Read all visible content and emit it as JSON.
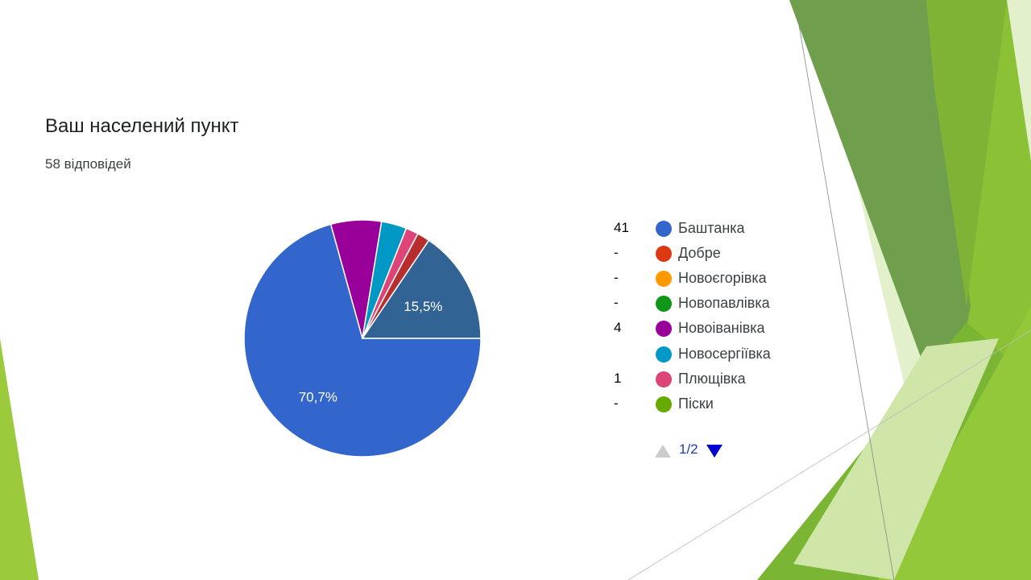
{
  "header": {
    "title": "Ваш населений пункт",
    "responses": "58 відповідей"
  },
  "chart_data": {
    "type": "pie",
    "total_responses": 58,
    "slices": [
      {
        "label": "Баштанка",
        "count": 41,
        "percent": 70.7,
        "color": "#3366cc",
        "data_label": "70,7%"
      },
      {
        "label": "Добре",
        "count": 0,
        "color": "#dc3912"
      },
      {
        "label": "Новоєгорівка",
        "count": 0,
        "color": "#ff9900"
      },
      {
        "label": "Новопавлівка",
        "count": 0,
        "color": "#109618"
      },
      {
        "label": "Новоіванівка",
        "count": 4,
        "color": "#990099"
      },
      {
        "label": "Новосергіївка",
        "count": 2,
        "color": "#0099c6"
      },
      {
        "label": "Плющівка",
        "count": 1,
        "color": "#dd4477"
      },
      {
        "label": "Піски",
        "count": 0,
        "color": "#66aa00"
      },
      {
        "label": "",
        "count": 1,
        "color": "#b82e2e"
      },
      {
        "label": "",
        "count": 9,
        "percent": 15.5,
        "color": "#316395",
        "data_label": "15,5%"
      }
    ],
    "legend_placement": "right"
  },
  "legend": {
    "items": [
      {
        "count": "41",
        "label": "Баштанка",
        "color": "#3366cc"
      },
      {
        "count": "-",
        "label": "Добре",
        "color": "#dc3912"
      },
      {
        "count": "-",
        "label": "Новоєгорівка",
        "color": "#ff9900"
      },
      {
        "count": "-",
        "label": "Новопавлівка",
        "color": "#109618"
      },
      {
        "count": "4",
        "label": "Новоіванівка",
        "color": "#990099"
      },
      {
        "count": "",
        "label": "Новосергіївка",
        "color": "#0099c6"
      },
      {
        "count": "1",
        "label": "Плющівка",
        "color": "#dd4477"
      },
      {
        "count": "-",
        "label": "Піски",
        "color": "#66aa00"
      }
    ],
    "pager": {
      "text": "1/2",
      "up_color": "#cccccc",
      "down_color": "#0000cc"
    }
  },
  "theme": {
    "green_dark": "#5e9141",
    "green_mid": "#7ab534",
    "green_light": "#9bcb3c",
    "green_pale": "#d7ebb5"
  }
}
